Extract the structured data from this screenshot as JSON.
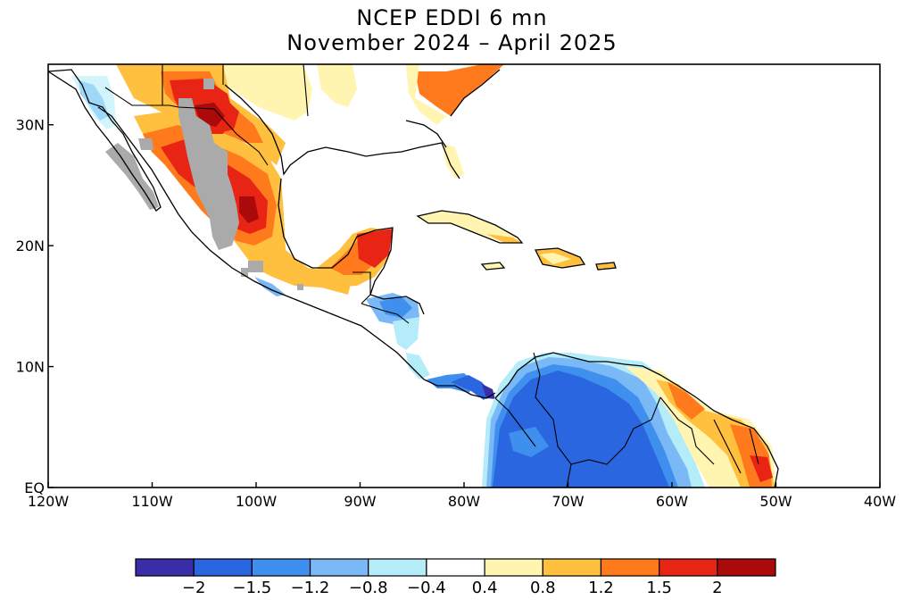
{
  "title": {
    "line1": "NCEP EDDI 6 mn",
    "line2": "November 2024 – April 2025"
  },
  "map": {
    "lon_range": [
      -120,
      -40
    ],
    "lat_range": [
      0,
      35
    ],
    "x_ticks": [
      "120W",
      "110W",
      "100W",
      "90W",
      "80W",
      "70W",
      "60W",
      "50W",
      "40W"
    ],
    "y_ticks": [
      "EQ",
      "10N",
      "20N",
      "30N"
    ],
    "missing_color": "#aaaaaa",
    "ocean_color": "#ffffff"
  },
  "colorbar": {
    "colors": [
      "#3a2ea8",
      "#2a66e0",
      "#3f90ee",
      "#7ab8f6",
      "#b4ecfa",
      "#ffffff",
      "#fff4b0",
      "#ffc040",
      "#ff7a1c",
      "#e82414",
      "#aa0a0a"
    ],
    "labels": [
      "−2",
      "−1.5",
      "−1.2",
      "−0.8",
      "−0.4",
      "0.4",
      "0.8",
      "1.2",
      "1.5",
      "2"
    ]
  },
  "regions": [
    {
      "name": "baja-california",
      "category": "-1.2 to -0.8",
      "color": "#7ab8f6"
    },
    {
      "name": "northern-mexico-sierra",
      "category": "1.5 to 2",
      "color": "#e82414"
    },
    {
      "name": "central-mexico",
      "category": "missing",
      "color": "#aaaaaa"
    },
    {
      "name": "yucatan",
      "category": "1.5 to 2",
      "color": "#e82414"
    },
    {
      "name": "honduras",
      "category": "-1.5 to -1.2",
      "color": "#3f90ee"
    },
    {
      "name": "panama-colombia-coast",
      "category": "< -2",
      "color": "#3a2ea8"
    },
    {
      "name": "colombia-venezuela",
      "category": "-2 to -1.5",
      "color": "#2a66e0"
    },
    {
      "name": "guianas-amapa",
      "category": "1.5 to 2",
      "color": "#e82414"
    },
    {
      "name": "southeast-us-georgia",
      "category": "1.2 to 1.5",
      "color": "#ff7a1c"
    },
    {
      "name": "texas-gulf",
      "category": "0.8 to 1.2",
      "color": "#ffc040"
    },
    {
      "name": "cuba",
      "category": "0.4 to 0.8",
      "color": "#fff4b0"
    },
    {
      "name": "hispaniola",
      "category": "0.8 to 1.2",
      "color": "#ffc040"
    }
  ]
}
